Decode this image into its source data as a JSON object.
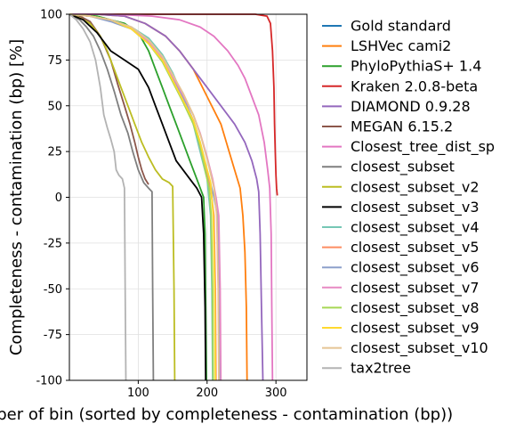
{
  "chart_data": {
    "type": "line",
    "xlabel": "Number of bin (sorted by completeness - contamination (bp))",
    "ylabel": "Completeness - contamination (bp) [%]",
    "xlim": [
      0,
      345
    ],
    "ylim": [
      -100,
      100
    ],
    "xticks": [
      100,
      200,
      300
    ],
    "yticks": [
      -100,
      -75,
      -50,
      -25,
      0,
      25,
      50,
      75,
      100
    ],
    "grid": true,
    "legend_position": "outside-right",
    "series": [
      {
        "name": "Gold standard",
        "color": "#1f77b4",
        "points": []
      },
      {
        "name": "LSHVec cami2",
        "color": "#ff7f0e",
        "points": [
          [
            0,
            100
          ],
          [
            40,
            100
          ],
          [
            80,
            99
          ],
          [
            110,
            95
          ],
          [
            140,
            88
          ],
          [
            160,
            80
          ],
          [
            180,
            70
          ],
          [
            200,
            55
          ],
          [
            220,
            40
          ],
          [
            240,
            15
          ],
          [
            248,
            5
          ],
          [
            252,
            -10
          ],
          [
            255,
            -30
          ],
          [
            257,
            -60
          ],
          [
            258,
            -100
          ]
        ]
      },
      {
        "name": "PhyloPythiaS+ 1.4",
        "color": "#2ca02c",
        "points": [
          [
            0,
            100
          ],
          [
            40,
            99
          ],
          [
            60,
            97
          ],
          [
            80,
            95
          ],
          [
            100,
            90
          ],
          [
            115,
            80
          ],
          [
            125,
            70
          ],
          [
            135,
            60
          ],
          [
            145,
            50
          ],
          [
            155,
            40
          ],
          [
            165,
            30
          ],
          [
            175,
            20
          ],
          [
            185,
            10
          ],
          [
            195,
            0
          ],
          [
            197,
            -20
          ],
          [
            198,
            -60
          ],
          [
            199,
            -100
          ]
        ]
      },
      {
        "name": "Kraken 2.0.8-beta",
        "color": "#d62728",
        "points": [
          [
            0,
            100
          ],
          [
            100,
            100
          ],
          [
            200,
            100
          ],
          [
            270,
            100
          ],
          [
            287,
            99
          ],
          [
            292,
            95
          ],
          [
            295,
            80
          ],
          [
            297,
            60
          ],
          [
            298,
            40
          ],
          [
            299,
            25
          ],
          [
            300,
            12
          ],
          [
            301,
            5
          ],
          [
            302,
            1
          ]
        ]
      },
      {
        "name": "DIAMOND 0.9.28",
        "color": "#9467bd",
        "points": [
          [
            0,
            100
          ],
          [
            40,
            100
          ],
          [
            80,
            99
          ],
          [
            110,
            95
          ],
          [
            140,
            88
          ],
          [
            160,
            80
          ],
          [
            180,
            70
          ],
          [
            200,
            60
          ],
          [
            220,
            50
          ],
          [
            240,
            40
          ],
          [
            255,
            30
          ],
          [
            265,
            20
          ],
          [
            272,
            10
          ],
          [
            275,
            3
          ],
          [
            277,
            -20
          ],
          [
            279,
            -60
          ],
          [
            281,
            -100
          ]
        ]
      },
      {
        "name": "MEGAN 6.15.2",
        "color": "#8c564b",
        "points": [
          [
            0,
            100
          ],
          [
            15,
            99
          ],
          [
            30,
            96
          ],
          [
            45,
            88
          ],
          [
            60,
            75
          ],
          [
            70,
            62
          ],
          [
            80,
            50
          ],
          [
            88,
            40
          ],
          [
            95,
            30
          ],
          [
            100,
            22
          ],
          [
            105,
            15
          ],
          [
            110,
            10
          ],
          [
            115,
            7
          ]
        ]
      },
      {
        "name": "Closest_tree_dist_sp",
        "color": "#e377c2",
        "points": [
          [
            0,
            100
          ],
          [
            60,
            100
          ],
          [
            120,
            99
          ],
          [
            160,
            97
          ],
          [
            190,
            93
          ],
          [
            210,
            88
          ],
          [
            230,
            80
          ],
          [
            245,
            72
          ],
          [
            255,
            65
          ],
          [
            265,
            55
          ],
          [
            275,
            45
          ],
          [
            283,
            30
          ],
          [
            288,
            15
          ],
          [
            291,
            5
          ],
          [
            293,
            -20
          ],
          [
            294,
            -60
          ],
          [
            295,
            -100
          ]
        ]
      },
      {
        "name": "closest_subset",
        "color": "#7f7f7f",
        "points": [
          [
            0,
            100
          ],
          [
            15,
            97
          ],
          [
            25,
            93
          ],
          [
            35,
            88
          ],
          [
            45,
            80
          ],
          [
            55,
            70
          ],
          [
            65,
            58
          ],
          [
            75,
            45
          ],
          [
            85,
            35
          ],
          [
            92,
            25
          ],
          [
            100,
            15
          ],
          [
            108,
            8
          ],
          [
            115,
            5
          ],
          [
            120,
            3
          ],
          [
            121,
            -50
          ],
          [
            122,
            -100
          ]
        ]
      },
      {
        "name": "closest_subset_v2",
        "color": "#bcbd22",
        "points": [
          [
            0,
            100
          ],
          [
            15,
            98
          ],
          [
            30,
            95
          ],
          [
            45,
            88
          ],
          [
            55,
            80
          ],
          [
            65,
            70
          ],
          [
            75,
            60
          ],
          [
            85,
            50
          ],
          [
            95,
            40
          ],
          [
            105,
            30
          ],
          [
            115,
            22
          ],
          [
            125,
            15
          ],
          [
            135,
            10
          ],
          [
            145,
            8
          ],
          [
            150,
            6
          ],
          [
            152,
            -50
          ],
          [
            153,
            -100
          ]
        ]
      },
      {
        "name": "closest_subset_v3",
        "color": "#000000",
        "points": [
          [
            0,
            100
          ],
          [
            20,
            97
          ],
          [
            40,
            90
          ],
          [
            60,
            80
          ],
          [
            80,
            75
          ],
          [
            100,
            70
          ],
          [
            115,
            60
          ],
          [
            125,
            50
          ],
          [
            135,
            40
          ],
          [
            145,
            30
          ],
          [
            155,
            20
          ],
          [
            165,
            15
          ],
          [
            175,
            10
          ],
          [
            185,
            5
          ],
          [
            192,
            0
          ],
          [
            195,
            -20
          ],
          [
            197,
            -60
          ],
          [
            198,
            -100
          ]
        ]
      },
      {
        "name": "closest_subset_v4",
        "color": "#76c7b5",
        "points": [
          [
            0,
            100
          ],
          [
            30,
            99
          ],
          [
            60,
            97
          ],
          [
            90,
            93
          ],
          [
            115,
            87
          ],
          [
            135,
            78
          ],
          [
            150,
            68
          ],
          [
            165,
            55
          ],
          [
            180,
            40
          ],
          [
            190,
            25
          ],
          [
            200,
            10
          ],
          [
            205,
            -10
          ],
          [
            207,
            -50
          ],
          [
            208,
            -100
          ]
        ]
      },
      {
        "name": "closest_subset_v5",
        "color": "#fd8d62",
        "points": [
          [
            0,
            100
          ],
          [
            30,
            99
          ],
          [
            60,
            97
          ],
          [
            90,
            92
          ],
          [
            115,
            85
          ],
          [
            135,
            75
          ],
          [
            155,
            62
          ],
          [
            170,
            50
          ],
          [
            185,
            35
          ],
          [
            195,
            20
          ],
          [
            205,
            5
          ],
          [
            210,
            -10
          ],
          [
            212,
            -50
          ],
          [
            213,
            -100
          ]
        ]
      },
      {
        "name": "closest_subset_v6",
        "color": "#8da0cb",
        "points": [
          [
            0,
            100
          ],
          [
            30,
            99
          ],
          [
            60,
            96
          ],
          [
            90,
            92
          ],
          [
            115,
            84
          ],
          [
            135,
            75
          ],
          [
            150,
            65
          ],
          [
            165,
            55
          ],
          [
            180,
            42
          ],
          [
            190,
            30
          ],
          [
            200,
            15
          ],
          [
            210,
            0
          ],
          [
            215,
            -10
          ],
          [
            217,
            -50
          ],
          [
            218,
            -100
          ]
        ]
      },
      {
        "name": "closest_subset_v7",
        "color": "#e78ac3",
        "points": [
          [
            0,
            100
          ],
          [
            30,
            99
          ],
          [
            60,
            97
          ],
          [
            90,
            92
          ],
          [
            115,
            85
          ],
          [
            135,
            76
          ],
          [
            150,
            66
          ],
          [
            165,
            56
          ],
          [
            180,
            45
          ],
          [
            190,
            35
          ],
          [
            200,
            22
          ],
          [
            208,
            10
          ],
          [
            213,
            0
          ],
          [
            217,
            -10
          ],
          [
            219,
            -50
          ],
          [
            220,
            -100
          ]
        ]
      },
      {
        "name": "closest_subset_v8",
        "color": "#a6d854",
        "points": [
          [
            0,
            100
          ],
          [
            30,
            99
          ],
          [
            60,
            97
          ],
          [
            90,
            92
          ],
          [
            115,
            84
          ],
          [
            135,
            74
          ],
          [
            150,
            63
          ],
          [
            165,
            52
          ],
          [
            180,
            40
          ],
          [
            190,
            28
          ],
          [
            197,
            15
          ],
          [
            203,
            5
          ],
          [
            206,
            -10
          ],
          [
            208,
            -50
          ],
          [
            209,
            -100
          ]
        ]
      },
      {
        "name": "closest_subset_v9",
        "color": "#ffd92f",
        "points": [
          [
            0,
            100
          ],
          [
            30,
            99
          ],
          [
            60,
            97
          ],
          [
            90,
            92
          ],
          [
            115,
            84
          ],
          [
            135,
            75
          ],
          [
            150,
            64
          ],
          [
            165,
            53
          ],
          [
            180,
            42
          ],
          [
            190,
            30
          ],
          [
            198,
            18
          ],
          [
            205,
            8
          ],
          [
            209,
            -10
          ],
          [
            211,
            -50
          ],
          [
            212,
            -100
          ]
        ]
      },
      {
        "name": "closest_subset_v10",
        "color": "#e5c494",
        "points": [
          [
            0,
            100
          ],
          [
            30,
            99
          ],
          [
            60,
            97
          ],
          [
            90,
            93
          ],
          [
            115,
            86
          ],
          [
            135,
            77
          ],
          [
            150,
            67
          ],
          [
            165,
            57
          ],
          [
            180,
            45
          ],
          [
            192,
            32
          ],
          [
            202,
            18
          ],
          [
            210,
            5
          ],
          [
            214,
            -10
          ],
          [
            216,
            -50
          ],
          [
            217,
            -100
          ]
        ]
      },
      {
        "name": "tax2tree",
        "color": "#b3b3b3",
        "points": [
          [
            0,
            100
          ],
          [
            10,
            97
          ],
          [
            20,
            92
          ],
          [
            30,
            85
          ],
          [
            38,
            75
          ],
          [
            45,
            60
          ],
          [
            50,
            45
          ],
          [
            55,
            38
          ],
          [
            60,
            32
          ],
          [
            65,
            25
          ],
          [
            68,
            15
          ],
          [
            72,
            12
          ],
          [
            77,
            10
          ],
          [
            80,
            5
          ],
          [
            81,
            -50
          ],
          [
            82,
            -100
          ]
        ]
      }
    ]
  }
}
